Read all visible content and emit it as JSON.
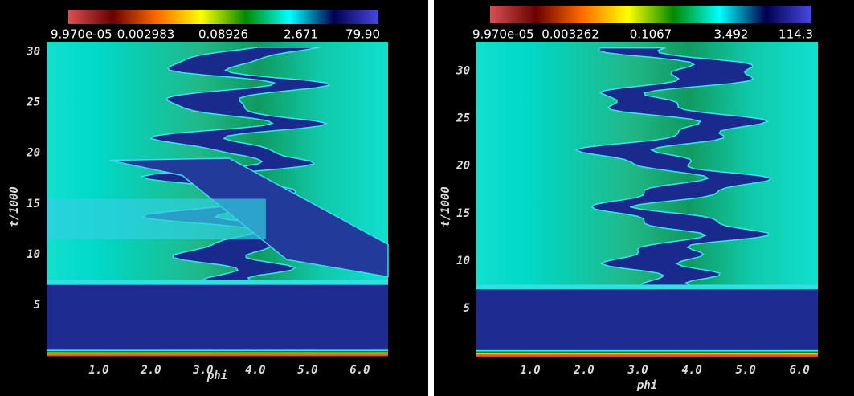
{
  "chart_data": [
    {
      "type": "heatmap",
      "xlabel": "phi",
      "ylabel": "t/1000",
      "xlim": [
        0,
        6.54
      ],
      "ylim": [
        0,
        31
      ],
      "xticks": [
        {
          "value": 1,
          "label": "1.0"
        },
        {
          "value": 2,
          "label": "2.0"
        },
        {
          "value": 3,
          "label": "3.0"
        },
        {
          "value": 4,
          "label": "4.0"
        },
        {
          "value": 5,
          "label": "5.0"
        },
        {
          "value": 6,
          "label": "6.0"
        }
      ],
      "yticks": [
        5,
        10,
        15,
        20,
        25,
        30
      ],
      "colorbar": {
        "log_scale": true,
        "clim": [
          9.97e-05,
          79.9
        ],
        "ticks": [
          {
            "value": 9.97e-05,
            "label": "9.970e-05"
          },
          0.002983,
          0.08926,
          2.671,
          {
            "value": 79.9,
            "label": "79.90"
          }
        ],
        "colormap": [
          "#d85050",
          "#6a0000",
          "#ff6a00",
          "#ffff00",
          "#008a00",
          "#00ffff",
          "#000050",
          "#4848e0"
        ]
      }
    },
    {
      "type": "heatmap",
      "xlabel": "phi",
      "ylabel": "t/1000",
      "xlim": [
        0,
        6.34
      ],
      "ylim": [
        0,
        33.1
      ],
      "xticks": [
        {
          "value": 1,
          "label": "1.0"
        },
        {
          "value": 2,
          "label": "2.0"
        },
        {
          "value": 3,
          "label": "3.0"
        },
        {
          "value": 4,
          "label": "4.0"
        },
        {
          "value": 5,
          "label": "5.0"
        },
        {
          "value": 6,
          "label": "6.0"
        }
      ],
      "yticks": [
        5,
        10,
        15,
        20,
        25,
        30
      ],
      "colorbar": {
        "log_scale": true,
        "clim": [
          9.97e-05,
          114.3
        ],
        "ticks": [
          {
            "value": 9.97e-05,
            "label": "9.970e-05"
          },
          0.003262,
          0.1067,
          3.492,
          114.3
        ],
        "colormap": [
          "#d85050",
          "#6a0000",
          "#ff6a00",
          "#ffff00",
          "#008a00",
          "#00ffff",
          "#000050",
          "#4848e0"
        ]
      }
    }
  ]
}
